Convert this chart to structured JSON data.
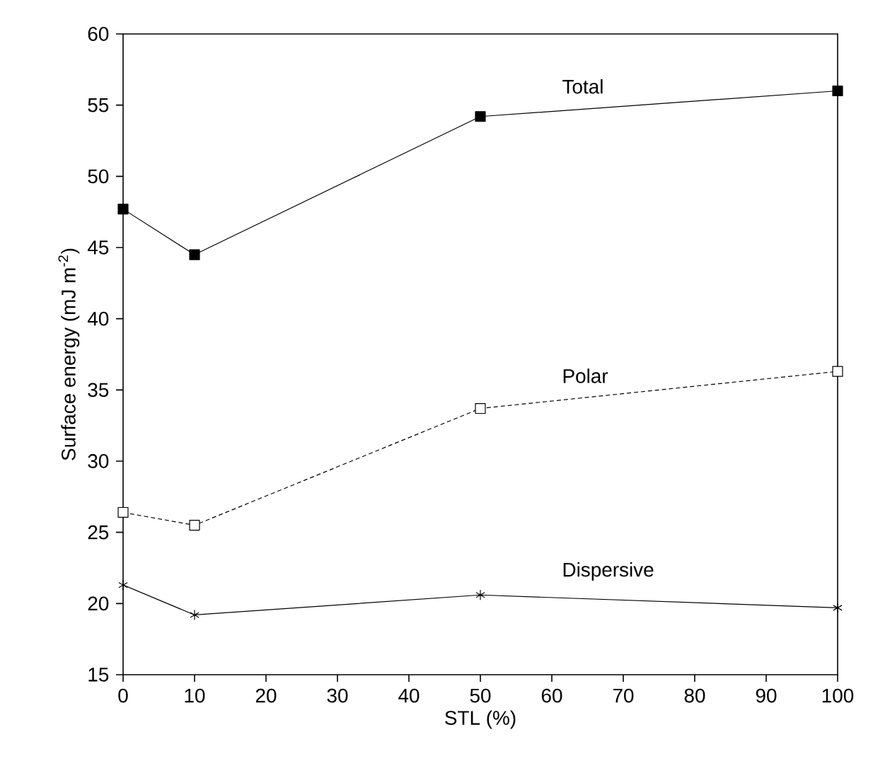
{
  "chart_data": {
    "type": "line",
    "xlabel": "STL (%)",
    "ylabel": "Surface energy (mJ m$^{-2}$)",
    "x": [
      0,
      10,
      50,
      100
    ],
    "xlim": [
      0,
      100
    ],
    "xticks": [
      0,
      10,
      20,
      30,
      40,
      50,
      60,
      70,
      80,
      90,
      100
    ],
    "ylim": [
      15,
      60
    ],
    "yticks": [
      15,
      20,
      25,
      30,
      35,
      40,
      45,
      50,
      55,
      60
    ],
    "grid": false,
    "series": [
      {
        "name": "Total",
        "color": "#000000",
        "marker": "square",
        "line_style": "solid",
        "values": [
          47.7,
          44.5,
          54.2,
          56.0
        ]
      },
      {
        "name": "Polar",
        "color": "#000000",
        "marker": "square",
        "line_style": "dashed",
        "values": [
          26.4,
          25.5,
          33.7,
          36.3
        ]
      },
      {
        "name": "Dispersive",
        "color": "#000000",
        "marker": "cross",
        "line_style": "solid",
        "values": [
          21.3,
          19.2,
          20.6,
          19.7
        ]
      }
    ]
  }
}
